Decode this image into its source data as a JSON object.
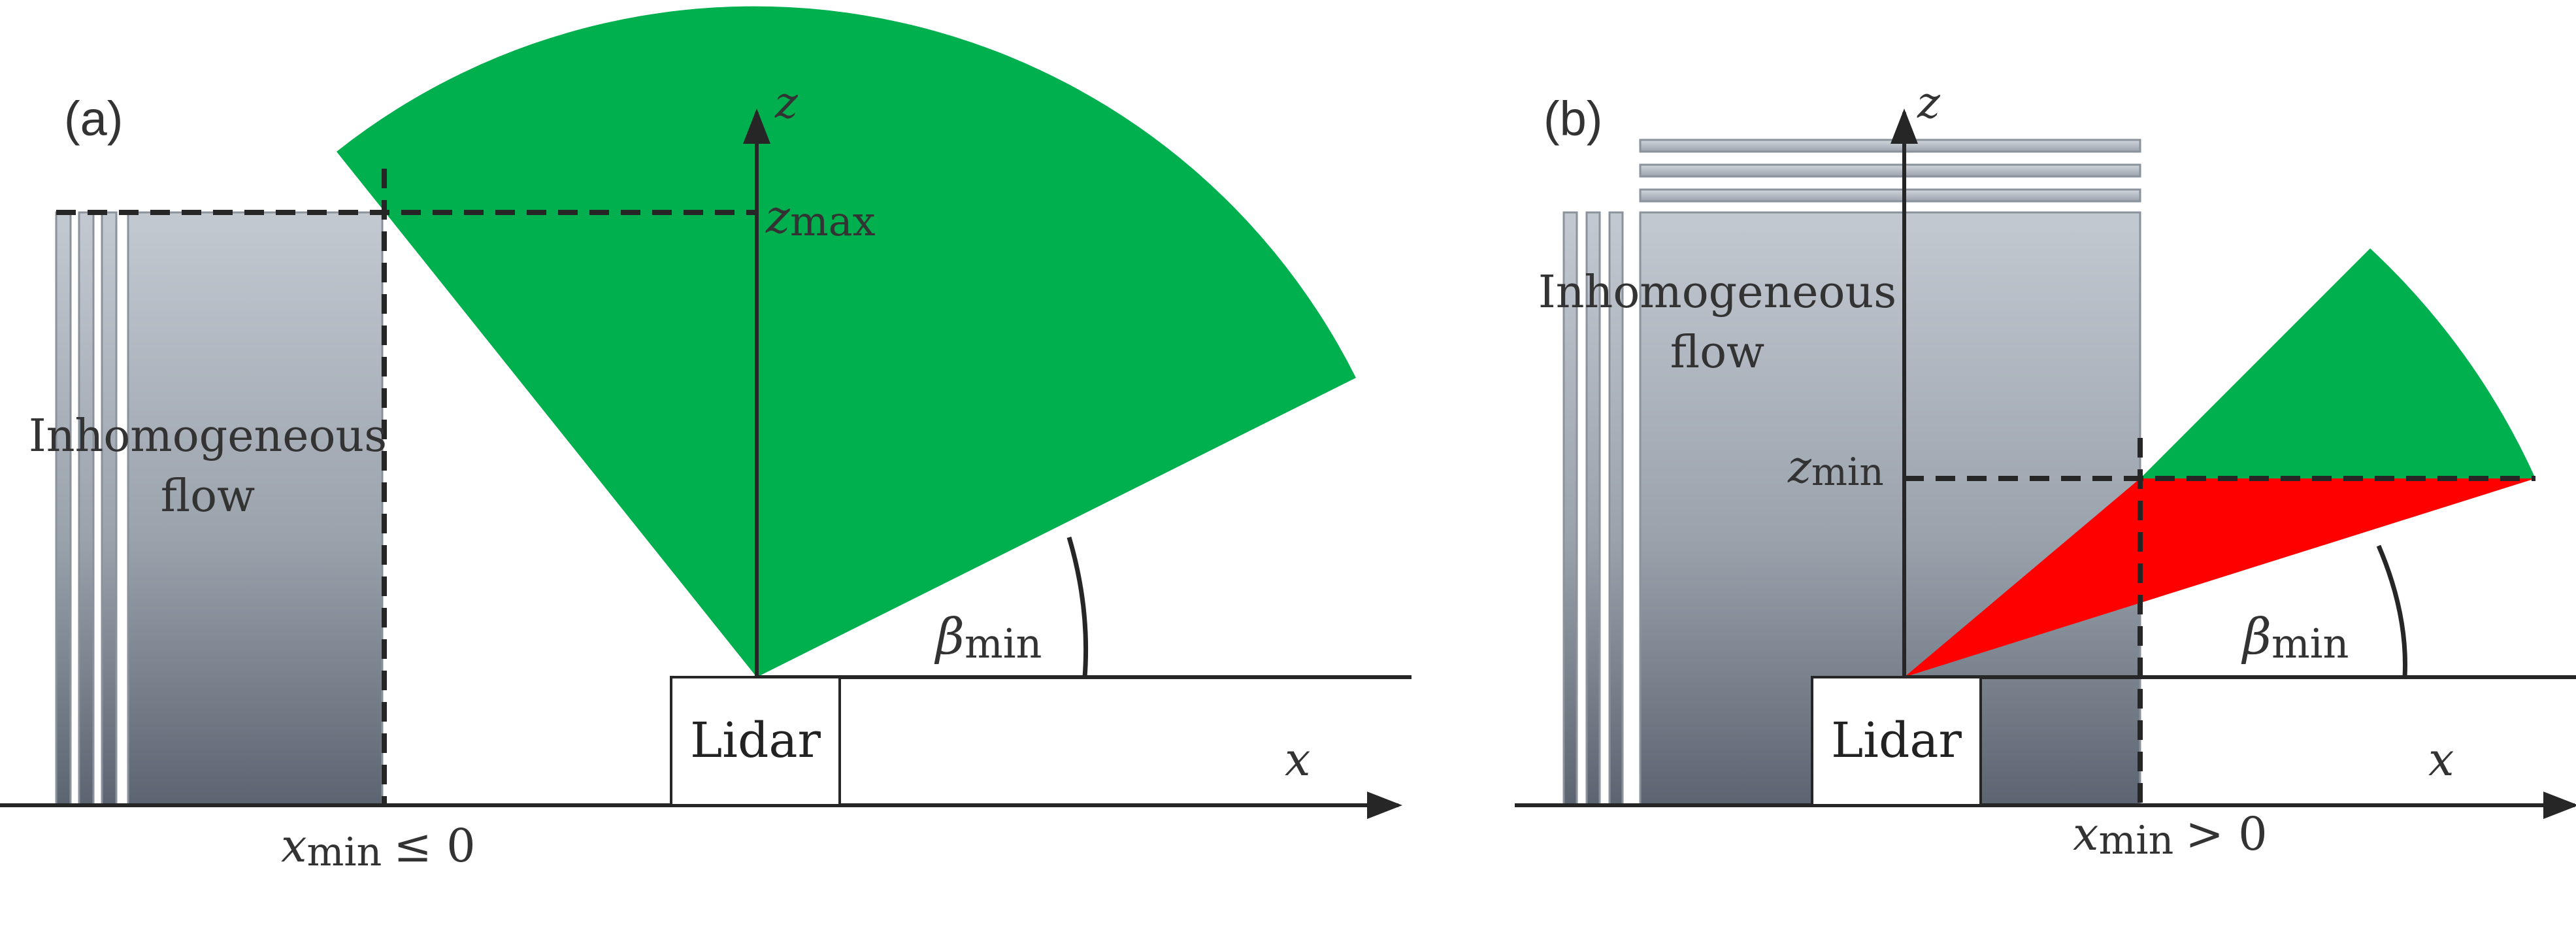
{
  "colors": {
    "sector": "#00b04f",
    "blocked": "#ff0000",
    "axis": "#262626",
    "building_top": "#c3c9d1",
    "building_bottom": "#5b6470"
  },
  "panel_a": {
    "tag": "(a)",
    "z_axis": "z",
    "x_axis": "x",
    "z_max_base": "z",
    "z_max_sub": "max",
    "beta_base": "β",
    "beta_sub": "min",
    "x_min_base": "x",
    "x_min_sub": "min",
    "x_min_rel": "≤ 0",
    "flow_line1": "Inhomogeneous",
    "flow_line2": "flow",
    "lidar": "Lidar"
  },
  "panel_b": {
    "tag": "(b)",
    "z_axis": "z",
    "x_axis": "x",
    "z_min_base": "z",
    "z_min_sub": "min",
    "beta_base": "β",
    "beta_sub": "min",
    "x_min_base": "x",
    "x_min_sub": "min",
    "x_min_rel": "> 0",
    "flow_line1": "Inhomogeneous",
    "flow_line2": "flow",
    "lidar": "Lidar"
  }
}
